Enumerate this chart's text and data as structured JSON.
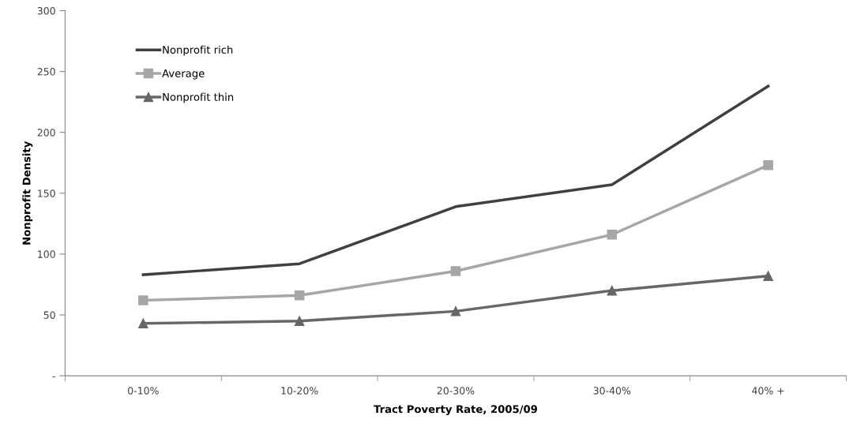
{
  "chart_data": {
    "type": "line",
    "xlabel": "Tract Poverty Rate, 2005/09",
    "ylabel": "Nonprofit Density",
    "categories": [
      "0-10%",
      "10-20%",
      "20-30%",
      "30-40%",
      "40% +"
    ],
    "series": [
      {
        "name": "Nonprofit rich",
        "color": "#404040",
        "marker": "none",
        "values": [
          83,
          92,
          139,
          157,
          238
        ]
      },
      {
        "name": "Average",
        "color": "#a6a6a6",
        "marker": "square",
        "values": [
          62,
          66,
          86,
          116,
          173
        ]
      },
      {
        "name": "Nonprofit thin",
        "color": "#676767",
        "marker": "triangle",
        "values": [
          43,
          45,
          53,
          70,
          82
        ]
      }
    ],
    "ylim": [
      0,
      300
    ],
    "yticks": [
      {
        "value": 0,
        "label": "-"
      },
      50,
      100,
      150,
      200,
      250,
      300
    ],
    "grid": false,
    "legend": "top left"
  }
}
